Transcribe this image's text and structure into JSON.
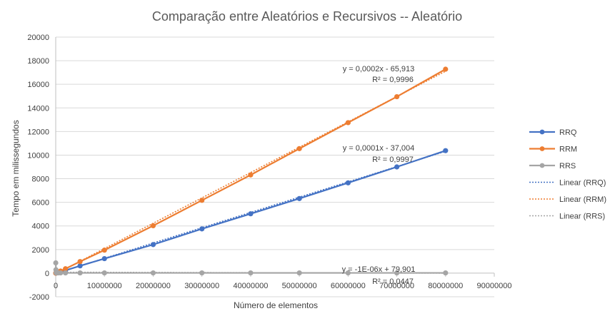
{
  "chart_data": {
    "type": "scatter",
    "title": "Comparação entre Aleatórios e Recursivos -- Aleatório",
    "xlabel": "Número de elementos",
    "ylabel": "Tempo em milissegundos",
    "xlim": [
      0,
      90000000
    ],
    "ylim": [
      -2000,
      20000
    ],
    "x_ticks": [
      "0",
      "10000000",
      "20000000",
      "30000000",
      "40000000",
      "50000000",
      "60000000",
      "70000000",
      "80000000",
      "90000000"
    ],
    "y_ticks": [
      "-2000",
      "0",
      "2000",
      "4000",
      "6000",
      "8000",
      "10000",
      "12000",
      "14000",
      "16000",
      "18000",
      "20000"
    ],
    "grid": "horizontal",
    "legend_position": "right",
    "series": [
      {
        "name": "RRQ",
        "color": "#4472C4",
        "x": [
          10000,
          50000,
          100000,
          500000,
          1000000,
          2000000,
          5000000,
          10000000,
          20000000,
          30000000,
          40000000,
          50000000,
          60000000,
          70000000,
          80000000
        ],
        "y": [
          2,
          5,
          10,
          55,
          110,
          230,
          620,
          1230,
          2420,
          3750,
          5030,
          6320,
          7650,
          9000,
          10380
        ]
      },
      {
        "name": "RRM",
        "color": "#ED7D31",
        "x": [
          10000,
          50000,
          100000,
          500000,
          1000000,
          2000000,
          5000000,
          10000000,
          20000000,
          30000000,
          40000000,
          50000000,
          60000000,
          70000000,
          80000000
        ],
        "y": [
          3,
          8,
          17,
          90,
          180,
          370,
          980,
          1950,
          4020,
          6170,
          8320,
          10550,
          12750,
          14950,
          17280
        ]
      },
      {
        "name": "RRS",
        "color": "#A5A5A5",
        "x": [
          10000,
          50000,
          100000,
          500000,
          1000000,
          2000000,
          5000000,
          10000000,
          20000000,
          30000000,
          40000000,
          50000000,
          60000000,
          70000000,
          80000000
        ],
        "y": [
          870,
          290,
          20,
          20,
          20,
          20,
          20,
          20,
          20,
          20,
          20,
          20,
          20,
          20,
          20
        ]
      }
    ],
    "trendlines": [
      {
        "name": "Linear (RRQ)",
        "color": "#4472C4",
        "slope": 0.0001295,
        "intercept": -37.004,
        "equation": "y = 0,0001x - 37,004",
        "r2": "R² = 0,9997"
      },
      {
        "name": "Linear (RRM)",
        "color": "#ED7D31",
        "slope": 0.0002147,
        "intercept": -65.913,
        "equation": "y = 0,0002x - 65,913",
        "r2": "R² = 0,9996"
      },
      {
        "name": "Linear (RRS)",
        "color": "#A5A5A5",
        "slope": -1e-06,
        "intercept": 79.901,
        "equation": "y = -1E-06x + 79,901",
        "r2": "R² = 0,0447"
      }
    ]
  }
}
